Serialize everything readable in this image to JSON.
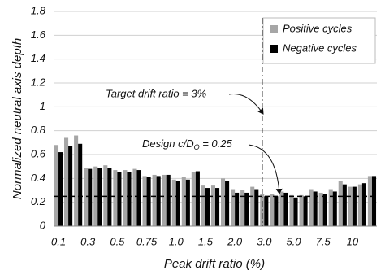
{
  "chart_data": {
    "type": "bar",
    "y_label": "Normalized neutral axis depth",
    "x_label": "Peak drift ratio (%)",
    "categories": [
      "0.1",
      null,
      null,
      "0.3",
      null,
      null,
      "0.5",
      null,
      null,
      "0.75",
      null,
      null,
      "1.0",
      null,
      null,
      "1.5",
      null,
      null,
      "2.0",
      null,
      null,
      "3.0",
      null,
      null,
      "5.0",
      null,
      null,
      "7.5",
      null,
      null,
      "10",
      null,
      null
    ],
    "series": [
      {
        "name": "Positive cycles",
        "color": "#a6a6a6",
        "values": [
          0.68,
          0.74,
          0.76,
          0.49,
          0.5,
          0.51,
          0.47,
          0.47,
          0.48,
          0.42,
          0.43,
          0.43,
          0.39,
          0.41,
          0.45,
          0.34,
          0.34,
          0.4,
          0.31,
          0.3,
          0.33,
          0.27,
          0.27,
          0.29,
          0.26,
          0.26,
          0.31,
          0.28,
          0.31,
          0.38,
          0.33,
          0.35,
          0.42
        ]
      },
      {
        "name": "Negative cycles",
        "color": "#000000",
        "values": [
          0.62,
          0.67,
          0.69,
          0.48,
          0.49,
          0.49,
          0.45,
          0.45,
          0.47,
          0.41,
          0.42,
          0.43,
          0.38,
          0.39,
          0.46,
          0.32,
          0.32,
          0.38,
          0.28,
          0.28,
          0.31,
          0.25,
          0.25,
          0.28,
          0.24,
          0.25,
          0.29,
          0.27,
          0.29,
          0.35,
          0.33,
          0.36,
          0.42
        ]
      }
    ],
    "ylim": [
      0,
      1.8
    ],
    "yticks": [
      0,
      0.2,
      0.4,
      0.6,
      0.8,
      1,
      1.2,
      1.4,
      1.6,
      1.8
    ],
    "grid": true,
    "legend": "top-right",
    "target_line": {
      "text": "Target drift ratio = 3%",
      "category": 21
    },
    "design_line": {
      "text": [
        "Design c/D",
        "O",
        " = 0.25"
      ],
      "value": 0.25
    }
  }
}
